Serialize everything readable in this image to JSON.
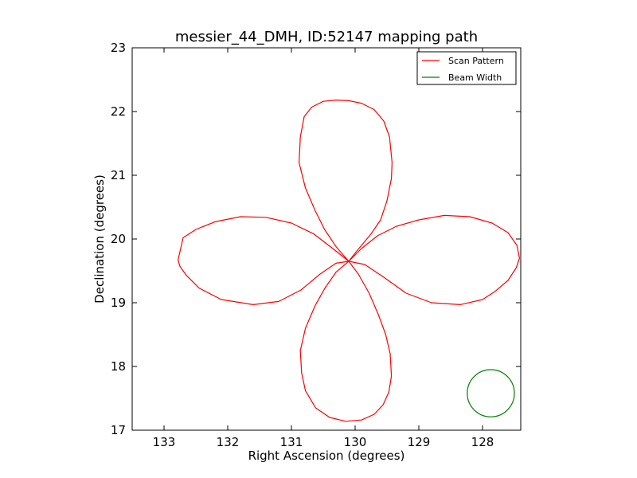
{
  "chart_data": {
    "type": "line",
    "title": "messier_44_DMH, ID:52147 mapping path",
    "xlabel": "Right Ascension (degrees)",
    "ylabel": "Declination (degrees)",
    "xlim": [
      133.5,
      127.4
    ],
    "ylim": [
      17,
      23
    ],
    "x_inverted": true,
    "x_ticks": [
      133,
      132,
      131,
      130,
      129,
      128
    ],
    "x_tick_labels": [
      "133",
      "132",
      "131",
      "130",
      "129",
      "128"
    ],
    "y_ticks": [
      17,
      18,
      19,
      20,
      21,
      22,
      23
    ],
    "y_tick_labels": [
      "17",
      "18",
      "19",
      "20",
      "21",
      "22",
      "23"
    ],
    "grid": false,
    "legend_position": "top-right",
    "series": [
      {
        "name": "Scan Pattern",
        "color": "#ff0000",
        "x": [
          130.1,
          130.3,
          130.48,
          130.63,
          130.78,
          130.88,
          130.86,
          130.8,
          130.68,
          130.5,
          130.3,
          130.1,
          129.9,
          129.7,
          129.55,
          129.46,
          129.42,
          129.43,
          129.5,
          129.6,
          129.75,
          129.9,
          130.0,
          130.1,
          130.35,
          130.65,
          131.0,
          131.4,
          131.8,
          132.2,
          132.5,
          132.7,
          132.78,
          132.75,
          132.65,
          132.45,
          132.1,
          131.6,
          131.2,
          130.85,
          130.55,
          130.3,
          130.1,
          129.9,
          129.65,
          129.35,
          129.0,
          128.6,
          128.2,
          127.85,
          127.6,
          127.46,
          127.42,
          127.47,
          127.6,
          127.8,
          128.0,
          128.35,
          128.8,
          129.2,
          129.55,
          129.85,
          130.1,
          130.3,
          130.48,
          130.63,
          130.78,
          130.86,
          130.84,
          130.78,
          130.62,
          130.4,
          130.15,
          129.9,
          129.7,
          129.56,
          129.47,
          129.43,
          129.45,
          129.52,
          129.63,
          129.78,
          129.95,
          130.1
        ],
        "y": [
          19.65,
          19.88,
          20.15,
          20.45,
          20.8,
          21.2,
          21.6,
          21.92,
          22.07,
          22.16,
          22.18,
          22.17,
          22.13,
          22.03,
          21.85,
          21.6,
          21.2,
          20.95,
          20.6,
          20.3,
          20.08,
          19.9,
          19.78,
          19.65,
          19.85,
          20.08,
          20.25,
          20.34,
          20.35,
          20.27,
          20.15,
          20.02,
          19.67,
          19.57,
          19.43,
          19.23,
          19.05,
          18.97,
          19.02,
          19.2,
          19.45,
          19.62,
          19.65,
          19.85,
          20.05,
          20.2,
          20.3,
          20.37,
          20.35,
          20.25,
          20.1,
          19.9,
          19.7,
          19.55,
          19.35,
          19.18,
          19.05,
          18.97,
          19.0,
          19.15,
          19.4,
          19.6,
          19.65,
          19.48,
          19.22,
          18.95,
          18.6,
          18.25,
          17.9,
          17.62,
          17.35,
          17.2,
          17.14,
          17.16,
          17.25,
          17.4,
          17.6,
          17.85,
          18.2,
          18.5,
          18.8,
          19.15,
          19.45,
          19.65
        ]
      },
      {
        "name": "Beam Width",
        "color": "#008000",
        "shape": "circle",
        "center_x": 127.87,
        "center_y": 17.58,
        "radius": 0.37
      }
    ]
  }
}
